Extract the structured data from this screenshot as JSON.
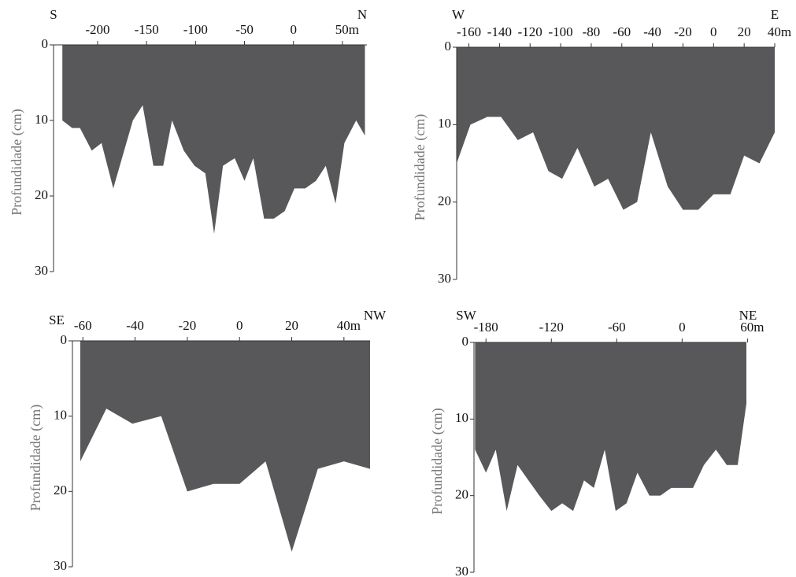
{
  "chart_data": [
    {
      "type": "area",
      "left_label": "S",
      "right_label": "N",
      "ylabel": "Profundidade (cm)",
      "x": [
        -236,
        -226,
        -218,
        -206,
        -196,
        -184,
        -164,
        -154,
        -143,
        -133,
        -124,
        -112,
        -101,
        -90,
        -81,
        -72,
        -60,
        -50,
        -41,
        -30,
        -20,
        -9,
        1,
        12,
        23,
        33,
        43,
        52,
        64,
        73
      ],
      "values": [
        10,
        11,
        11,
        14,
        13,
        19,
        10,
        8,
        16,
        16,
        10,
        14,
        16,
        17,
        25,
        16,
        15,
        18,
        15,
        23,
        23,
        22,
        19,
        19,
        18,
        16,
        21,
        13,
        10,
        12
      ],
      "xlim": [
        -245,
        75
      ],
      "xticks": [
        -200,
        -150,
        -100,
        -50,
        0,
        {
          "value": 50,
          "label": "50m"
        }
      ],
      "ylim": [
        0,
        30
      ],
      "yticks": [
        0,
        10,
        20,
        30
      ],
      "color": "#58585a"
    },
    {
      "type": "area",
      "left_label": "W",
      "right_label": "E",
      "ylabel": "Profundidade (cm)",
      "x": [
        -168,
        -159,
        -148,
        -139,
        -128,
        -118,
        -108,
        -99,
        -89,
        -78,
        -69,
        -59,
        -50,
        -41,
        -30,
        -20,
        -10,
        0,
        11,
        20,
        30,
        40
      ],
      "values": [
        15,
        10,
        9,
        9,
        12,
        11,
        16,
        17,
        13,
        18,
        17,
        21,
        20,
        11,
        18,
        21,
        21,
        19,
        19,
        14,
        15,
        11
      ],
      "xlim": [
        -168,
        40
      ],
      "xticks": [
        -160,
        -140,
        -120,
        -100,
        -80,
        -60,
        -40,
        -20,
        0,
        20,
        {
          "value": 40,
          "label": "40m"
        }
      ],
      "ylim": [
        0,
        30
      ],
      "yticks": [
        0,
        10,
        20,
        30
      ],
      "color": "#58585a"
    },
    {
      "type": "area",
      "left_label": "SE",
      "right_label": "NW",
      "ylabel": "Profundidade (cm)",
      "x": [
        -61,
        -51,
        -41,
        -30,
        -20,
        -10,
        0,
        10,
        20,
        30,
        40,
        50
      ],
      "values": [
        16,
        9,
        11,
        10,
        20,
        19,
        19,
        16,
        28,
        17,
        16,
        17
      ],
      "xlim": [
        -64,
        50
      ],
      "xticks": [
        -60,
        -40,
        -20,
        0,
        20,
        {
          "value": 40,
          "label": "40m"
        }
      ],
      "ylim": [
        0,
        30
      ],
      "yticks": [
        0,
        10,
        20,
        30
      ],
      "color": "#58585a"
    },
    {
      "type": "area",
      "left_label": "SW",
      "right_label": "NE",
      "ylabel": "Profundidade (cm)",
      "x": [
        -190,
        -180,
        -171,
        -161,
        -151,
        -141,
        -131,
        -120,
        -110,
        -100,
        -90,
        -81,
        -71,
        -61,
        -51,
        -41,
        -30,
        -20,
        -10,
        0,
        10,
        20,
        31,
        41,
        51,
        59
      ],
      "values": [
        14,
        17,
        14,
        22,
        16,
        18,
        20,
        22,
        21,
        22,
        18,
        19,
        14,
        22,
        21,
        17,
        20,
        20,
        19,
        19,
        19,
        16,
        14,
        16,
        16,
        8
      ],
      "xlim": [
        -191,
        59
      ],
      "xticks": [
        -180,
        -120,
        -60,
        0,
        {
          "value": 60,
          "label": "60m"
        }
      ],
      "ylim": [
        0,
        30
      ],
      "yticks": [
        0,
        10,
        20,
        30
      ],
      "color": "#58585a"
    }
  ]
}
